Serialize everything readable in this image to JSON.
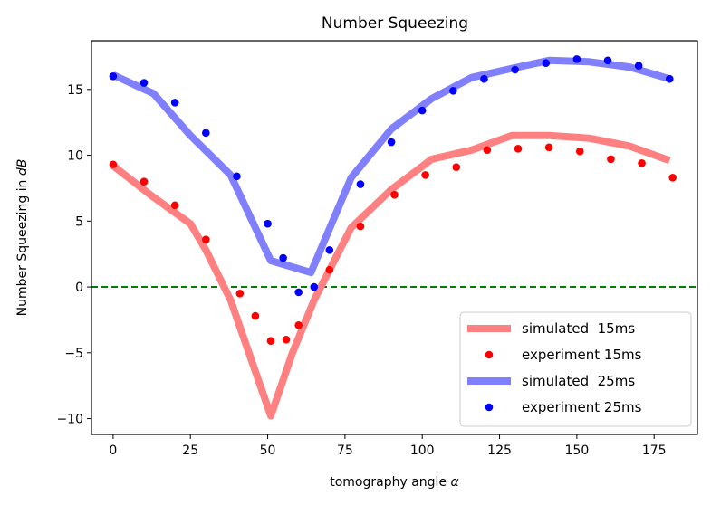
{
  "chart_data": {
    "type": "line",
    "title": "Number Squeezing",
    "xlabel_parts": [
      "tomography angle ",
      "α"
    ],
    "ylabel_parts": [
      "Number Squeezing in ",
      "dB"
    ],
    "xlim": [
      -7,
      189
    ],
    "ylim": [
      -11.2,
      18.7
    ],
    "xticks": [
      0,
      25,
      50,
      75,
      100,
      125,
      150,
      175
    ],
    "yticks": [
      -10,
      -5,
      0,
      5,
      10,
      15
    ],
    "tick_labels_x": [
      "0",
      "25",
      "50",
      "75",
      "100",
      "125",
      "150",
      "175"
    ],
    "tick_labels_y": [
      "−10",
      "−5",
      "0",
      "5",
      "10",
      "15"
    ],
    "grid": false,
    "legend_position": "lower-right",
    "reference_line": {
      "y": 0,
      "color": "#008000",
      "style": "dashed"
    },
    "series": [
      {
        "name": "simulated  15ms",
        "kind": "line",
        "color": "#ff8080",
        "x": [
          0,
          12,
          25,
          30,
          38,
          51,
          58,
          65,
          77,
          90,
          103,
          116,
          129,
          141,
          154,
          167,
          180
        ],
        "y": [
          9.2,
          7.0,
          4.8,
          2.8,
          -1.0,
          -9.8,
          -5.0,
          -1.0,
          4.5,
          7.4,
          9.7,
          10.4,
          11.5,
          11.5,
          11.3,
          10.7,
          9.6
        ]
      },
      {
        "name": "experiment 15ms",
        "kind": "scatter",
        "color": "#ff0000",
        "x": [
          0,
          10,
          20,
          30,
          41,
          46,
          51,
          56,
          60,
          70,
          80,
          91,
          101,
          111,
          121,
          131,
          141,
          151,
          161,
          171,
          181
        ],
        "y": [
          9.3,
          8.0,
          6.2,
          3.6,
          -0.5,
          -2.2,
          -4.1,
          -4.0,
          -2.9,
          1.3,
          4.6,
          7.0,
          8.5,
          9.1,
          10.4,
          10.5,
          10.6,
          10.3,
          9.7,
          9.4,
          8.3
        ]
      },
      {
        "name": "simulated  25ms",
        "kind": "line",
        "color": "#8080ff",
        "x": [
          0,
          13,
          25,
          38,
          51,
          64,
          77,
          90,
          103,
          116,
          129,
          141,
          154,
          167,
          180
        ],
        "y": [
          16.1,
          14.7,
          11.5,
          8.5,
          2.0,
          1.1,
          8.3,
          12.0,
          14.3,
          15.9,
          16.6,
          17.2,
          17.1,
          16.7,
          15.8
        ]
      },
      {
        "name": "experiment 25ms",
        "kind": "scatter",
        "color": "#0000ff",
        "x": [
          0,
          10,
          20,
          30,
          40,
          50,
          55,
          60,
          65,
          70,
          80,
          90,
          100,
          110,
          120,
          130,
          140,
          150,
          160,
          170,
          180
        ],
        "y": [
          16.0,
          15.5,
          14.0,
          11.7,
          8.4,
          4.8,
          2.2,
          -0.4,
          0.0,
          2.8,
          7.8,
          11.0,
          13.4,
          14.9,
          15.8,
          16.5,
          17.0,
          17.3,
          17.2,
          16.8,
          15.8
        ]
      }
    ]
  }
}
